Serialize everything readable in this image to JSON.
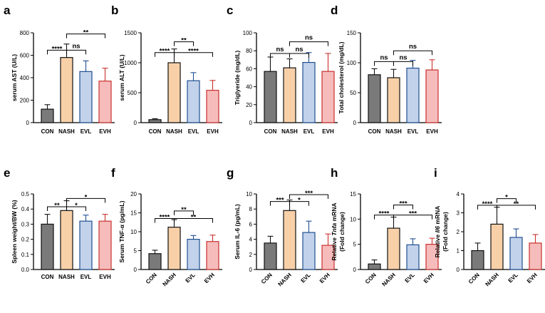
{
  "colors": {
    "CON": "#7a7a7a",
    "NASH": "#f8d0a8",
    "EVL": "#c2d2ea",
    "EVH": "#f6bcbc",
    "CON_edge": "#111111",
    "NASH_edge": "#111111",
    "EVL_edge": "#1f4f91",
    "EVH_edge": "#c9302c"
  },
  "chart_data": [
    {
      "id": "a",
      "panel_label": "a",
      "type": "bar",
      "ylabel": "serum AST (U/L)",
      "categories": [
        "CON",
        "NASH",
        "EVL",
        "EVH"
      ],
      "values": [
        120,
        580,
        455,
        370
      ],
      "errors": [
        40,
        120,
        95,
        115
      ],
      "ylim": [
        0,
        800
      ],
      "yticks": [
        0,
        200,
        400,
        600,
        800
      ],
      "yticklabels": [
        "0",
        "200",
        "400",
        "600",
        "800"
      ],
      "rotate_categories": false,
      "significance": [
        {
          "from": 0,
          "to": 1,
          "label": "****",
          "y": 645,
          "hooks": true
        },
        {
          "from": 1,
          "to": 2,
          "label": "ns",
          "y": 645,
          "hooks": true
        },
        {
          "from": 1,
          "to": 3,
          "label": "**",
          "y": 790,
          "hooks": true
        }
      ]
    },
    {
      "id": "b",
      "panel_label": "b",
      "type": "bar",
      "ylabel": "serum ALT (U/L)",
      "categories": [
        "CON",
        "NASH",
        "EVL",
        "EVH"
      ],
      "values": [
        50,
        1000,
        700,
        540
      ],
      "errors": [
        15,
        230,
        135,
        165
      ],
      "ylim": [
        0,
        1500
      ],
      "yticks": [
        0,
        500,
        1000,
        1500
      ],
      "yticklabels": [
        "0",
        "500",
        "1000",
        "1500"
      ],
      "rotate_categories": false,
      "significance": [
        {
          "from": 0,
          "to": 1,
          "label": "****",
          "y": 1170,
          "hooks": true
        },
        {
          "from": 1,
          "to": 3,
          "label": "****",
          "y": 1170,
          "hooks": true
        },
        {
          "from": 1,
          "to": 2,
          "label": "**",
          "y": 1350,
          "hooks": true
        }
      ]
    },
    {
      "id": "c",
      "panel_label": "c",
      "type": "bar",
      "ylabel": "Triglyeride (mg/dL)",
      "categories": [
        "CON",
        "NASH",
        "EVL",
        "EVH"
      ],
      "values": [
        57,
        61,
        67,
        57
      ],
      "errors": [
        16,
        10,
        11,
        20
      ],
      "ylim": [
        0,
        100
      ],
      "yticks": [
        0,
        20,
        40,
        60,
        80,
        100
      ],
      "yticklabels": [
        "0",
        "20",
        "40",
        "60",
        "80",
        "100"
      ],
      "rotate_categories": false,
      "significance": [
        {
          "from": 0,
          "to": 1,
          "label": "ns",
          "y": 77,
          "hooks": true
        },
        {
          "from": 1,
          "to": 2,
          "label": "ns",
          "y": 77,
          "hooks": true
        },
        {
          "from": 1,
          "to": 3,
          "label": "ns",
          "y": 90,
          "hooks": true
        }
      ]
    },
    {
      "id": "d",
      "panel_label": "d",
      "type": "bar",
      "ylabel": "Total cholesterol (mg/dL)",
      "categories": [
        "CON",
        "NASH",
        "EVL",
        "EVH"
      ],
      "values": [
        80,
        75,
        91,
        88
      ],
      "errors": [
        10,
        14,
        13,
        17
      ],
      "ylim": [
        0,
        150
      ],
      "yticks": [
        0,
        50,
        100,
        150
      ],
      "yticklabels": [
        "0",
        "50",
        "100",
        "150"
      ],
      "rotate_categories": false,
      "significance": [
        {
          "from": 0,
          "to": 1,
          "label": "ns",
          "y": 102,
          "hooks": true
        },
        {
          "from": 1,
          "to": 2,
          "label": "ns",
          "y": 102,
          "hooks": true
        },
        {
          "from": 1,
          "to": 3,
          "label": "ns",
          "y": 120,
          "hooks": true
        }
      ]
    },
    {
      "id": "e",
      "panel_label": "e",
      "type": "bar",
      "ylabel": "Spleen weight/BW (%)",
      "categories": [
        "CON",
        "NASH",
        "EVL",
        "EVH"
      ],
      "values": [
        0.3,
        0.39,
        0.32,
        0.32
      ],
      "errors": [
        0.065,
        0.065,
        0.04,
        0.045
      ],
      "ylim": [
        0,
        0.5
      ],
      "yticks": [
        0,
        0.1,
        0.2,
        0.3,
        0.4,
        0.5
      ],
      "yticklabels": [
        "0.0",
        "0.1",
        "0.2",
        "0.3",
        "0.4",
        "0.5"
      ],
      "rotate_categories": false,
      "significance": [
        {
          "from": 0,
          "to": 1,
          "label": "**",
          "y": 0.415,
          "hooks": true
        },
        {
          "from": 1,
          "to": 2,
          "label": "*",
          "y": 0.415,
          "hooks": true
        },
        {
          "from": 1,
          "to": 3,
          "label": "*",
          "y": 0.47,
          "hooks": true
        }
      ]
    },
    {
      "id": "f",
      "panel_label": "f",
      "type": "bar",
      "ylabel": "Serum TNF-α (pg/mL)",
      "categories": [
        "CON",
        "NASH",
        "EVL",
        "EVH"
      ],
      "values": [
        4.2,
        11.2,
        8.0,
        7.4
      ],
      "errors": [
        0.9,
        2.0,
        1.0,
        1.7
      ],
      "ylim": [
        0,
        20
      ],
      "yticks": [
        0,
        5,
        10,
        15,
        20
      ],
      "yticklabels": [
        "0",
        "5",
        "10",
        "15",
        "20"
      ],
      "rotate_categories": true,
      "significance": [
        {
          "from": 0,
          "to": 1,
          "label": "****",
          "y": 13.5,
          "hooks": true
        },
        {
          "from": 1,
          "to": 3,
          "label": "**",
          "y": 13.5,
          "hooks": true
        },
        {
          "from": 1,
          "to": 2,
          "label": "**",
          "y": 15.5,
          "hooks": true
        }
      ]
    },
    {
      "id": "g",
      "panel_label": "g",
      "type": "bar",
      "ylabel": "Serum IL-6 (pg/mL)",
      "categories": [
        "CON",
        "NASH",
        "EVL",
        "EVH"
      ],
      "values": [
        3.5,
        7.8,
        4.9,
        3.2
      ],
      "errors": [
        0.9,
        1.4,
        1.5,
        1.5
      ],
      "ylim": [
        0,
        10
      ],
      "yticks": [
        0,
        2,
        4,
        6,
        8,
        10
      ],
      "yticklabels": [
        "0",
        "2",
        "4",
        "6",
        "8",
        "10"
      ],
      "rotate_categories": true,
      "significance": [
        {
          "from": 0,
          "to": 1,
          "label": "***",
          "y": 9.0,
          "hooks": true
        },
        {
          "from": 1,
          "to": 2,
          "label": "*",
          "y": 9.0,
          "hooks": true
        },
        {
          "from": 1,
          "to": 3,
          "label": "***",
          "y": 9.9,
          "hooks": true
        }
      ]
    },
    {
      "id": "h",
      "panel_label": "h",
      "type": "bar",
      "ylabel": "Relative Tnfa mRNA (Fold change)",
      "ylabel_lines": [
        [
          {
            "text": "Relative ",
            "italic": false
          },
          {
            "text": "Tnfa",
            "italic": true
          },
          {
            "text": " mRNA",
            "italic": false
          }
        ],
        [
          {
            "text": "(Fold change)",
            "italic": false
          }
        ]
      ],
      "categories": [
        "CON",
        "NASH",
        "EVL",
        "EVH"
      ],
      "values": [
        1.1,
        8.2,
        4.9,
        5.0
      ],
      "errors": [
        0.8,
        2.2,
        1.2,
        1.2
      ],
      "ylim": [
        0,
        15
      ],
      "yticks": [
        0,
        5,
        10,
        15
      ],
      "yticklabels": [
        "0",
        "5",
        "10",
        "15"
      ],
      "rotate_categories": true,
      "significance": [
        {
          "from": 0,
          "to": 1,
          "label": "****",
          "y": 10.8,
          "hooks": true
        },
        {
          "from": 1,
          "to": 3,
          "label": "***",
          "y": 10.8,
          "hooks": true
        },
        {
          "from": 1,
          "to": 2,
          "label": "***",
          "y": 12.8,
          "hooks": true
        }
      ]
    },
    {
      "id": "i",
      "panel_label": "i",
      "type": "bar",
      "ylabel": "Relative Il6 mRNA (Fold change)",
      "ylabel_lines": [
        [
          {
            "text": "Relative ",
            "italic": false
          },
          {
            "text": "Il6",
            "italic": true
          },
          {
            "text": " mRNA",
            "italic": false
          }
        ],
        [
          {
            "text": "(Fold change)",
            "italic": false
          }
        ]
      ],
      "categories": [
        "CON",
        "NASH",
        "EVL",
        "EVH"
      ],
      "values": [
        1.0,
        2.4,
        1.7,
        1.4
      ],
      "errors": [
        0.4,
        0.9,
        0.45,
        0.45
      ],
      "ylim": [
        0,
        4
      ],
      "yticks": [
        0,
        1,
        2,
        3,
        4
      ],
      "yticklabels": [
        "0",
        "1",
        "2",
        "3",
        "4"
      ],
      "rotate_categories": true,
      "significance": [
        {
          "from": 0,
          "to": 1,
          "label": "****",
          "y": 3.4,
          "hooks": true
        },
        {
          "from": 1,
          "to": 3,
          "label": "**",
          "y": 3.4,
          "hooks": true
        },
        {
          "from": 1,
          "to": 2,
          "label": "*",
          "y": 3.75,
          "hooks": true
        }
      ]
    }
  ]
}
